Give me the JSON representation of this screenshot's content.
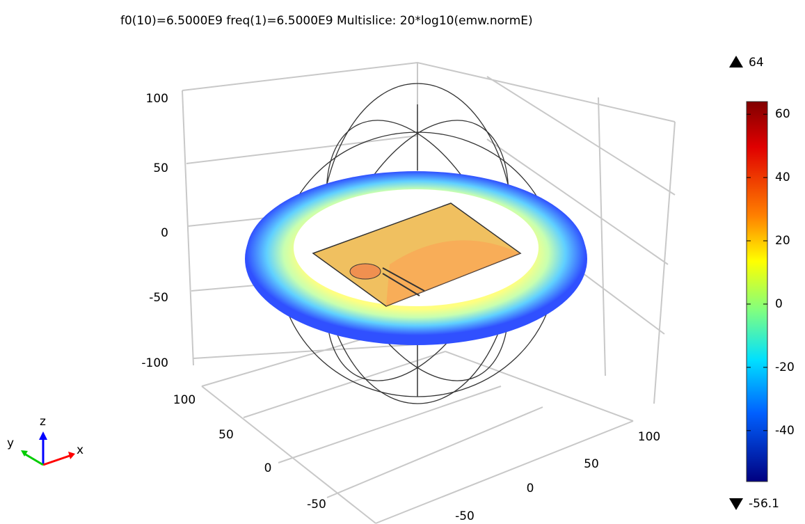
{
  "title": "f0(10)=6.5000E9 freq(1)=6.5000E9   Multislice: 20*log10(emw.normE)",
  "z_axis": {
    "ticks": [
      100,
      50,
      0,
      -50,
      -100
    ]
  },
  "y_axis": {
    "ticks": [
      100,
      50,
      0,
      -50
    ]
  },
  "x_axis": {
    "ticks": [
      100,
      50,
      0,
      -50
    ]
  },
  "colorbar": {
    "max": 64,
    "min": -56.1,
    "ticks": [
      60,
      40,
      20,
      0,
      -20,
      -40
    ]
  },
  "triad": {
    "x": "x",
    "y": "y",
    "z": "z"
  }
}
